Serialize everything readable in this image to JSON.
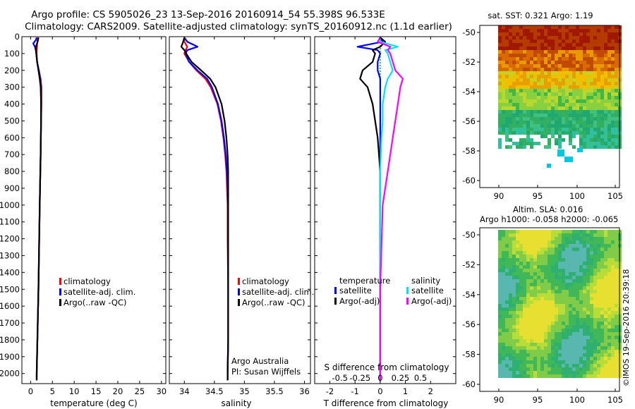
{
  "header": {
    "title_line1": "Argo profile: CS 5905026_23 13-Sep-2016 20160914_54 55.398S 96.533E",
    "title_line2": "Climatology: CARS2009. Satellite-adjusted climatology: synTS_20160912.nc (1.1d earlier)"
  },
  "colors": {
    "climatology": "#ff0000",
    "satellite": "#0000ff",
    "argo": "#000000",
    "sat_salinity": "#00e5ee",
    "argo_salinity_adj": "#ff00ff",
    "zero_line": "#00b000"
  },
  "depth_axis": {
    "ylim": [
      0,
      2060
    ],
    "ticks": [
      0,
      100,
      200,
      300,
      400,
      500,
      600,
      700,
      800,
      900,
      1000,
      1100,
      1200,
      1300,
      1400,
      1500,
      1600,
      1700,
      1800,
      1900,
      2000
    ]
  },
  "chart_data": [
    {
      "id": "temperature",
      "type": "line",
      "xlabel": "temperature (deg C)",
      "xlim": [
        -2,
        31
      ],
      "xticks": [
        "0",
        "5",
        "10",
        "15",
        "20",
        "25",
        "30"
      ],
      "xtick_values": [
        0,
        5,
        10,
        15,
        20,
        25,
        30
      ],
      "depth": [
        5,
        20,
        40,
        60,
        80,
        100,
        150,
        200,
        250,
        300,
        400,
        500,
        700,
        1000,
        1500,
        2000,
        2040
      ],
      "series": [
        {
          "name": "climatology",
          "color_key": "climatology",
          "values": [
            1.7,
            1.6,
            1.5,
            1.5,
            1.4,
            1.4,
            1.5,
            1.9,
            2.3,
            2.5,
            2.5,
            2.4,
            2.3,
            2.1,
            1.8,
            1.4,
            1.4
          ]
        },
        {
          "name": "satellite-adj. clim.",
          "color_key": "satellite",
          "values": [
            1.4,
            1.2,
            0.6,
            1.0,
            1.2,
            1.3,
            1.5,
            1.9,
            2.2,
            2.4,
            2.4,
            2.4,
            2.3,
            2.1,
            1.8,
            1.4,
            1.4
          ]
        },
        {
          "name": "Argo(..raw -QC)",
          "color_key": "argo",
          "values": [
            1.8,
            1.7,
            1.5,
            1.2,
            1.2,
            1.3,
            1.5,
            1.8,
            2.1,
            2.3,
            2.4,
            2.4,
            2.3,
            2.1,
            1.8,
            1.4,
            1.4
          ]
        }
      ],
      "legend": [
        "climatology",
        "satellite-adj. clim.",
        "Argo(..raw -QC)"
      ]
    },
    {
      "id": "salinity",
      "type": "line",
      "xlabel": "salinity",
      "xlim": [
        33.75,
        36.1
      ],
      "xticks": [
        "34",
        "34.5",
        "35",
        "35.5",
        "36"
      ],
      "xtick_values": [
        34,
        34.5,
        35,
        35.5,
        36
      ],
      "depth": [
        5,
        30,
        60,
        80,
        100,
        150,
        200,
        250,
        300,
        400,
        500,
        600,
        700,
        800,
        900,
        1000,
        1200,
        1500,
        1800,
        2000,
        2040
      ],
      "series": [
        {
          "name": "climatology",
          "color_key": "climatology",
          "values": [
            34.0,
            34.0,
            34.05,
            34.02,
            34.0,
            34.08,
            34.2,
            34.35,
            34.44,
            34.55,
            34.61,
            34.65,
            34.68,
            34.7,
            34.71,
            34.72,
            34.72,
            34.73,
            34.73,
            34.72,
            34.72
          ]
        },
        {
          "name": "satellite-adj. clim.",
          "color_key": "satellite",
          "values": [
            34.0,
            34.05,
            34.22,
            34.05,
            34.02,
            34.08,
            34.22,
            34.38,
            34.46,
            34.56,
            34.62,
            34.66,
            34.69,
            34.71,
            34.72,
            34.73,
            34.73,
            34.73,
            34.73,
            34.72,
            34.72
          ]
        },
        {
          "name": "Argo(..raw -QC)",
          "color_key": "argo",
          "values": [
            34.0,
            33.98,
            33.95,
            34.0,
            34.03,
            34.12,
            34.28,
            34.43,
            34.52,
            34.62,
            34.67,
            34.7,
            34.72,
            34.73,
            34.73,
            34.73,
            34.73,
            34.73,
            34.73,
            34.72,
            34.72
          ]
        }
      ],
      "legend": [
        "climatology",
        "satellite-adj. clim.",
        "Argo(..raw -QC)"
      ],
      "annotation_lines": [
        "Argo Australia",
        "PI: Susan Wijffels"
      ]
    },
    {
      "id": "difference",
      "type": "line",
      "xlabel": "T difference from climatology",
      "xlabel_top": "S difference from climatology",
      "xlim": [
        -2.6,
        3.0
      ],
      "xticks": [
        "-2",
        "-1",
        "0",
        "1",
        "2"
      ],
      "xtick_values": [
        -2,
        -1,
        0,
        1,
        2
      ],
      "xticks_top": [
        "-0.5",
        "-0.25",
        "0",
        "0.25",
        "0.5"
      ],
      "depth": [
        5,
        30,
        60,
        80,
        100,
        150,
        200,
        250,
        300,
        400,
        500,
        600,
        800,
        1000,
        1500,
        2000,
        2040
      ],
      "series": [
        {
          "name": "temperature satellite",
          "color_key": "satellite",
          "values": [
            0.0,
            0.1,
            -0.9,
            -0.1,
            0.0,
            -0.1,
            -0.1,
            0.0,
            0.0,
            0.0,
            0.0,
            0.0,
            0.0,
            0.0,
            0.0,
            0.0,
            0.0
          ]
        },
        {
          "name": "temperature Argo(-adj)",
          "color_key": "argo",
          "values": [
            0.0,
            0.2,
            0.0,
            -0.3,
            -0.2,
            -0.3,
            -0.7,
            -0.8,
            -0.5,
            -0.3,
            -0.2,
            -0.1,
            0.0,
            0.0,
            0.0,
            0.0,
            0.0
          ]
        },
        {
          "name": "salinity satellite",
          "color_key": "sat_salinity",
          "values": [
            0.0,
            0.0,
            0.7,
            0.2,
            0.3,
            0.4,
            0.5,
            0.3,
            0.2,
            0.1,
            0.1,
            0.05,
            0.0,
            0.0,
            0.0,
            0.0,
            0.0
          ]
        },
        {
          "name": "salinity Argo(-adj)",
          "color_key": "argo_salinity_adj",
          "values": [
            0.0,
            -0.1,
            0.4,
            0.3,
            0.4,
            0.5,
            0.6,
            0.9,
            0.8,
            0.7,
            0.6,
            0.5,
            0.3,
            0.1,
            0.0,
            0.0,
            0.0
          ]
        }
      ],
      "legend_headers": [
        "temperature",
        "salinity"
      ],
      "legend": [
        "satellite",
        "Argo(-adj)",
        "satellite",
        "Argo(-adj)"
      ]
    }
  ],
  "maps": {
    "sst": {
      "title": "sat. SST: 0.321  Argo: 1.19",
      "yticks": [
        "-50",
        "-52",
        "-54",
        "-56",
        "-58",
        "-60"
      ],
      "xticks": [
        "90",
        "95",
        "100",
        "105"
      ]
    },
    "sla": {
      "title_line1": "Altim. SLA: 0.016",
      "title_line2": "Argo h1000: -0.058 h2000: -0.065",
      "yticks": [
        "-50",
        "-52",
        "-54",
        "-56",
        "-58",
        "-60"
      ],
      "xticks": [
        "90",
        "95",
        "100",
        "105"
      ]
    }
  },
  "credit": "©IMOS 19-Sep-2016 20:39:18"
}
